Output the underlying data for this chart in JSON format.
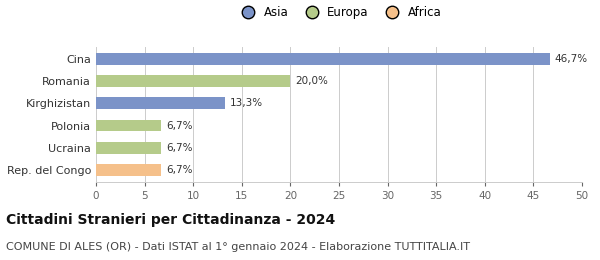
{
  "categories": [
    "Rep. del Congo",
    "Ucraina",
    "Polonia",
    "Kirghizistan",
    "Romania",
    "Cina"
  ],
  "values": [
    6.7,
    6.7,
    6.7,
    13.3,
    20.0,
    46.7
  ],
  "colors": [
    "#f5c08a",
    "#b5cb8a",
    "#b5cb8a",
    "#7b93c8",
    "#b5cb8a",
    "#7b93c8"
  ],
  "labels": [
    "6,7%",
    "6,7%",
    "6,7%",
    "13,3%",
    "20,0%",
    "46,7%"
  ],
  "legend": [
    {
      "label": "Asia",
      "color": "#7b93c8"
    },
    {
      "label": "Europa",
      "color": "#b5cb8a"
    },
    {
      "label": "Africa",
      "color": "#f5c08a"
    }
  ],
  "xlim": [
    0,
    50
  ],
  "xticks": [
    0,
    5,
    10,
    15,
    20,
    25,
    30,
    35,
    40,
    45,
    50
  ],
  "title": "Cittadini Stranieri per Cittadinanza - 2024",
  "subtitle": "COMUNE DI ALES (OR) - Dati ISTAT al 1° gennaio 2024 - Elaborazione TUTTITALIA.IT",
  "title_fontsize": 10,
  "subtitle_fontsize": 8,
  "bar_height": 0.52,
  "background_color": "#ffffff",
  "grid_color": "#cccccc",
  "label_fontsize": 7.5,
  "axis_fontsize": 7.5,
  "ytick_fontsize": 8
}
